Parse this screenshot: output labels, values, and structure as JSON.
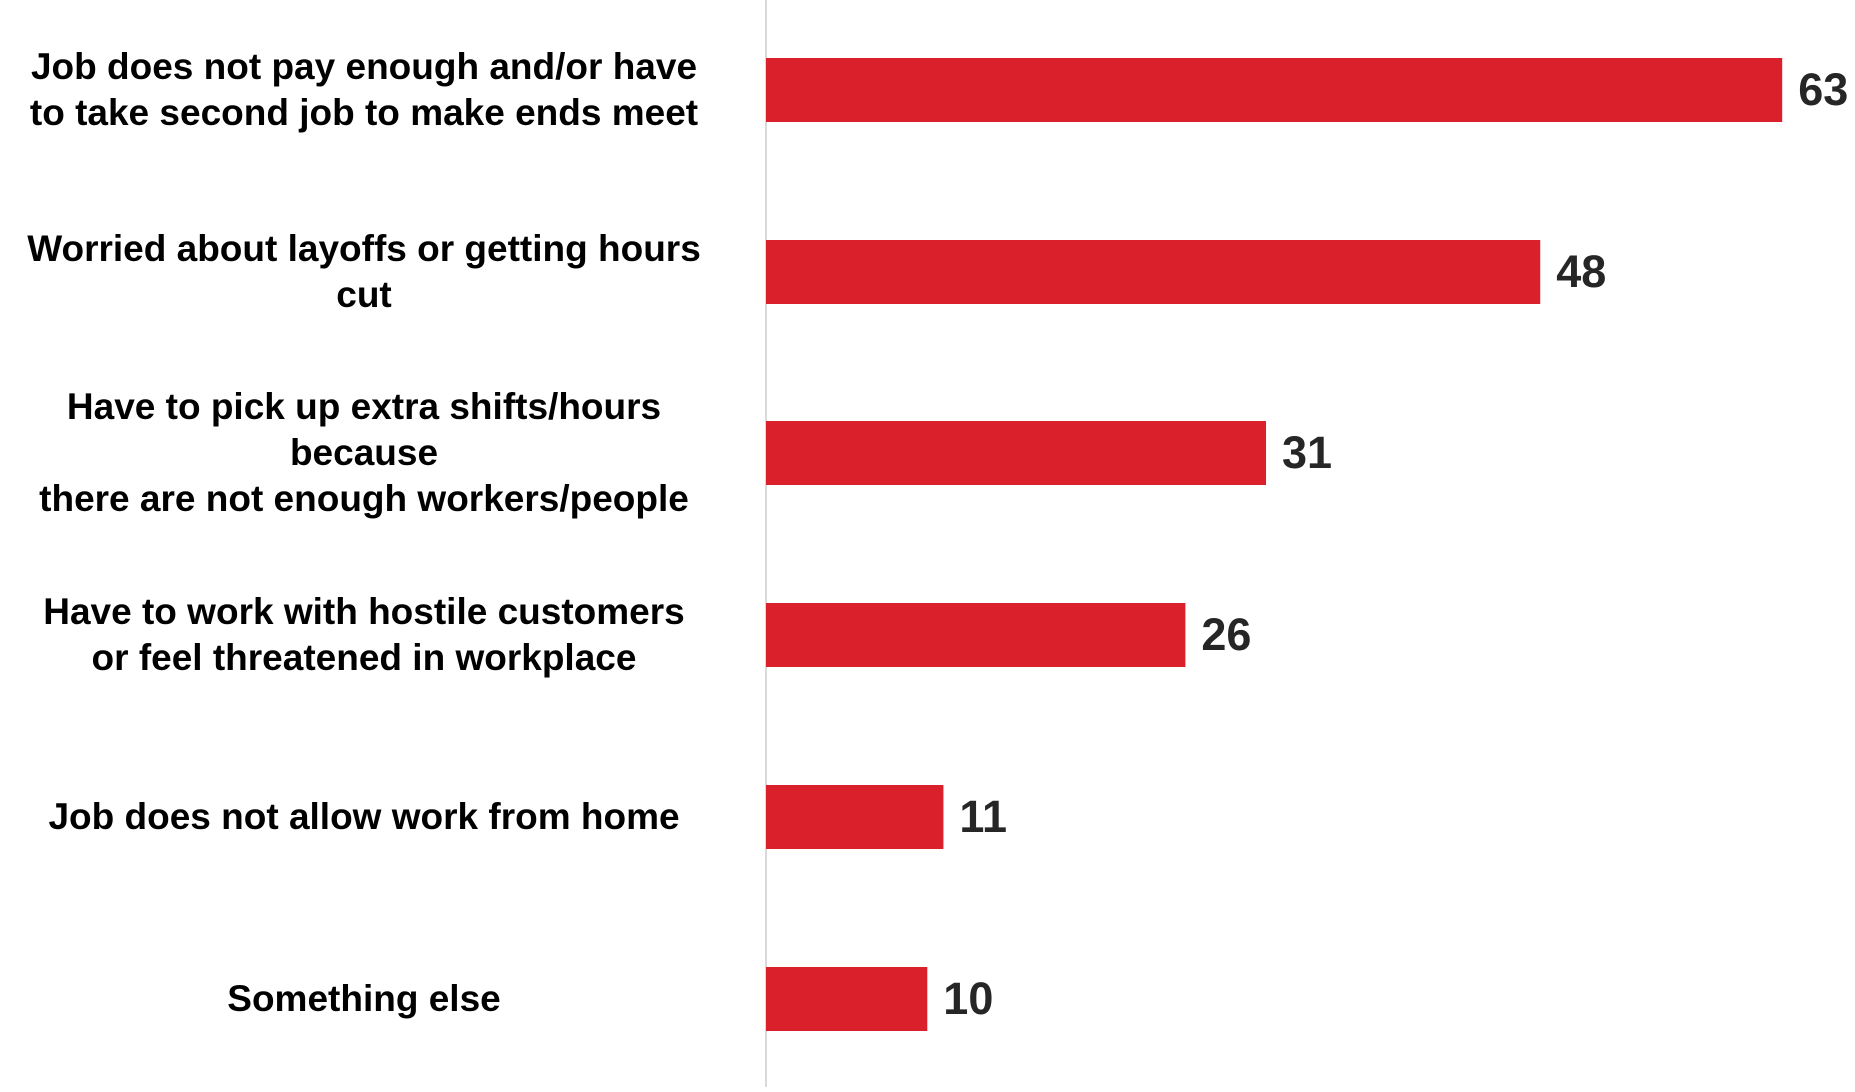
{
  "colors": {
    "bar": "#d9202b",
    "axis": "#d9d9d9",
    "value_label": "#262626",
    "category_label": "#000000"
  },
  "chart_data": {
    "type": "bar",
    "orientation": "horizontal",
    "categories": [
      "Job does not pay enough and/or have\nto take second job to make ends meet",
      "Worried about layoffs or getting hours\ncut",
      "Have to pick up extra shifts/hours\nbecause\nthere are not enough workers/people",
      "Have to work with hostile customers\nor feel threatened in workplace",
      "Job does not allow work from home",
      "Something else"
    ],
    "values": [
      63,
      48,
      31,
      26,
      11,
      10
    ],
    "title": "",
    "xlabel": "",
    "ylabel": "",
    "xlim": [
      0,
      65
    ],
    "grid": false,
    "legend": "none",
    "data_labels": true
  }
}
